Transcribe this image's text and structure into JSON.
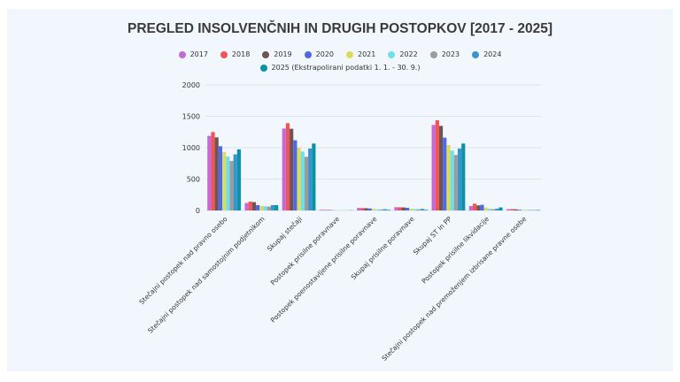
{
  "chart_data": {
    "type": "bar",
    "title": "PREGLED INSOLVENČNIH IN DRUGIH POSTOPKOV [2017 - 2025]",
    "categories": [
      "Stečajni postopek nad pravno osebo",
      "Stečajni postopek nad samostojnim podjetnikom",
      "Skupaj stečaji",
      "Postopek prisilne poravnave",
      "Postopek poenostavljene prisilne poravnave",
      "Skupaj prisilne poravnave",
      "Skupaj ST in PP",
      "Postopek prisilne likvidacije",
      "Stečajni postopek nad premoženjem izbrisane pravne osebe"
    ],
    "series": [
      {
        "name": "2017",
        "color": "#c46ad8",
        "values": [
          1188,
          118,
          1305,
          10,
          40,
          52,
          1362,
          70,
          20
        ]
      },
      {
        "name": "2018",
        "color": "#f15454",
        "values": [
          1249,
          141,
          1390,
          8,
          38,
          50,
          1436,
          108,
          22
        ]
      },
      {
        "name": "2019",
        "color": "#6e5554",
        "values": [
          1164,
          132,
          1301,
          7,
          36,
          48,
          1347,
          80,
          18
        ]
      },
      {
        "name": "2020",
        "color": "#5067e8",
        "values": [
          1023,
          85,
          1118,
          5,
          32,
          42,
          1160,
          90,
          12
        ]
      },
      {
        "name": "2021",
        "color": "#dcdc5a",
        "values": [
          930,
          70,
          1000,
          3,
          25,
          30,
          1042,
          48,
          10
        ]
      },
      {
        "name": "2022",
        "color": "#6ee0e6",
        "values": [
          860,
          66,
          939,
          2,
          18,
          22,
          953,
          28,
          8
        ]
      },
      {
        "name": "2023",
        "color": "#9c9c9c",
        "values": [
          789,
          61,
          855,
          2,
          15,
          18,
          883,
          20,
          8
        ]
      },
      {
        "name": "2024",
        "color": "#3a94cc",
        "values": [
          893,
          85,
          986,
          2,
          20,
          25,
          986,
          28,
          6
        ]
      },
      {
        "name": "2025 (Ekstrapolirani podatki 1. 1. - 30. 9.)",
        "color": "#0a93a8",
        "values": [
          972,
          85,
          1066,
          3,
          10,
          10,
          1066,
          48,
          8
        ]
      }
    ],
    "yticks": [
      "0",
      "500",
      "1000",
      "1500",
      "2000"
    ],
    "ylim": [
      0,
      2000
    ],
    "grid": true,
    "legend": "top"
  }
}
